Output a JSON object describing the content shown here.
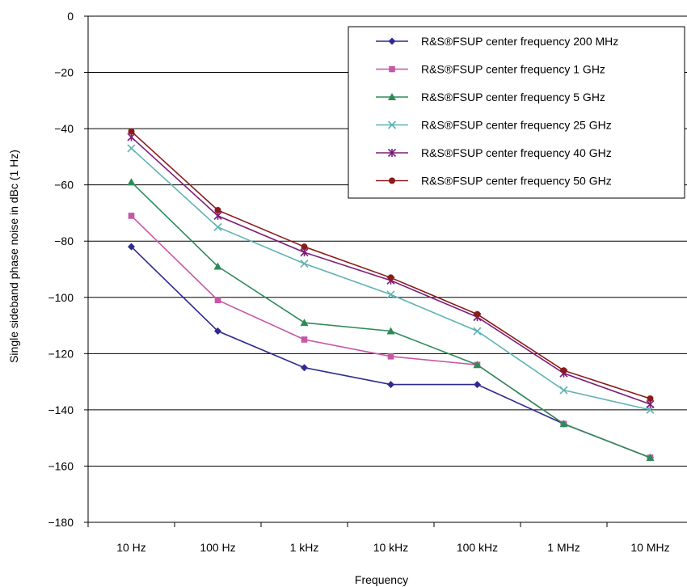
{
  "chart_data": {
    "type": "line",
    "title": "",
    "xlabel": "Frequency",
    "ylabel": "Single sideband phase noise in dBc (1 Hz)",
    "categories": [
      "10 Hz",
      "100 Hz",
      "1 kHz",
      "10 kHz",
      "100 kHz",
      "1 MHz",
      "10 MHz"
    ],
    "ylim": [
      -180,
      0
    ],
    "yticks": [
      0,
      -20,
      -40,
      -60,
      -80,
      -100,
      -120,
      -140,
      -160,
      -180
    ],
    "ytick_labels": [
      "0",
      "−20",
      "−40",
      "−60",
      "−80",
      "−100",
      "−120",
      "−140",
      "−160",
      "−180"
    ],
    "grid": "horizontal",
    "legend_position": "top-right",
    "series": [
      {
        "name": "R&S®FSUP center frequency 200 MHz",
        "color": "#2e2a8f",
        "marker": "diamond",
        "values": [
          -82,
          -112,
          -125,
          -131,
          -131,
          -145,
          -157
        ]
      },
      {
        "name": "R&S®FSUP center frequency 1 GHz",
        "color": "#c657a6",
        "marker": "square",
        "values": [
          -71,
          -101,
          -115,
          -121,
          -124,
          -145,
          -157
        ]
      },
      {
        "name": "R&S®FSUP center frequency 5 GHz",
        "color": "#2e8b57",
        "marker": "triangle",
        "values": [
          -59,
          -89,
          -109,
          -112,
          -124,
          -145,
          -157
        ]
      },
      {
        "name": "R&S®FSUP center frequency 25 GHz",
        "color": "#5fb3b3",
        "marker": "x",
        "values": [
          -47,
          -75,
          -88,
          -99,
          -112,
          -133,
          -140
        ]
      },
      {
        "name": "R&S®FSUP center frequency 40 GHz",
        "color": "#7a1d7a",
        "marker": "star",
        "values": [
          -43,
          -71,
          -84,
          -94,
          -107,
          -127,
          -138
        ]
      },
      {
        "name": "R&S®FSUP center frequency 50 GHz",
        "color": "#8b1a1a",
        "marker": "circle",
        "values": [
          -41,
          -69,
          -82,
          -93,
          -106,
          -126,
          -136
        ]
      }
    ]
  }
}
